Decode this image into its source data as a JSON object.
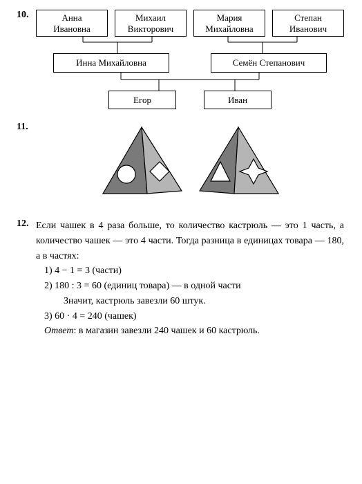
{
  "problems": {
    "p10": {
      "number": "10.",
      "row1": [
        "Анна\nИвановна",
        "Михаил\nВикторович",
        "Мария\nМихайловна",
        "Степан\nИванович"
      ],
      "row2": [
        "Инна  Михайловна",
        "Семён  Степанович"
      ],
      "row3": [
        "Егор",
        "Иван"
      ],
      "box_border": "#000000",
      "line_color": "#000000"
    },
    "p11": {
      "number": "11.",
      "fill": "#666666",
      "cutout": "#ffffff",
      "stroke": "#000000"
    },
    "p12": {
      "number": "12.",
      "intro": "Если чашек в 4 раза больше, то количество кастрюль — это 1 часть, а количество чашек — это 4 части. Тогда разница в единицах товара — 180, а в частях:",
      "step1": "1)  4 − 1 = 3  (части)",
      "step2": "2)  180 : 3 = 60  (единиц  товара)  —  в  одной  части",
      "step2b": "Значит, кастрюль завезли 60 штук.",
      "step3": "3)  60 · 4 = 240  (чашек)",
      "answer_label": "Ответ",
      "answer": ":  в  магазин  завезли  240  чашек  и  60  кастрюль."
    }
  },
  "colors": {
    "bg": "#ffffff",
    "text": "#000000"
  }
}
